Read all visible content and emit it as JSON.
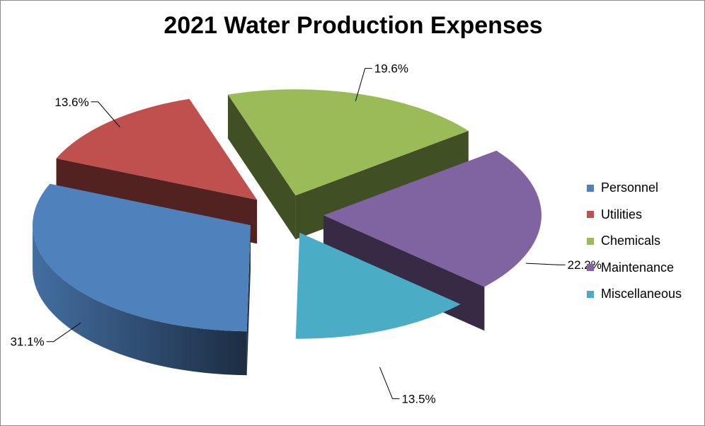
{
  "chart_data": {
    "type": "pie",
    "title": "2021 Water Production Expenses",
    "three_d": true,
    "exploded": true,
    "legend_position": "right",
    "slices": [
      {
        "name": "Personnel",
        "value": 31.1,
        "label": "31.1%",
        "color": "#4F81BD"
      },
      {
        "name": "Utilities",
        "value": 13.6,
        "label": "13.6%",
        "color": "#C0504D"
      },
      {
        "name": "Chemicals",
        "value": 19.6,
        "label": "19.6%",
        "color": "#9BBB59"
      },
      {
        "name": "Maintenance",
        "value": 22.2,
        "label": "22.2%",
        "color": "#8064A2"
      },
      {
        "name": "Miscellaneous",
        "value": 13.5,
        "label": "13.5%",
        "color": "#4BACC6"
      }
    ]
  }
}
